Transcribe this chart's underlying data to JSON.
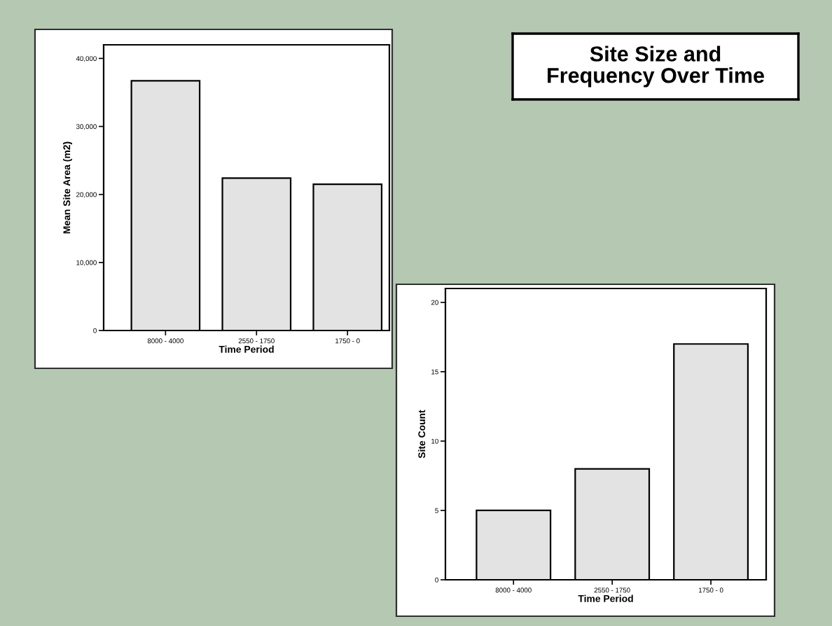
{
  "chart_data": [
    {
      "type": "bar",
      "xlabel": "Time Period",
      "ylabel": "Mean Site Area (m2)",
      "categories": [
        "8000 - 4000",
        "2550 - 1750",
        "1750 - 0"
      ],
      "values": [
        36700,
        22400,
        21500
      ],
      "color": "#e3e3e3",
      "ylim": [
        0,
        42000
      ],
      "yticks": [
        0,
        {
          "value": 10000,
          "label": "10,000"
        },
        {
          "value": 20000,
          "label": "20,000"
        },
        {
          "value": 30000,
          "label": "30,000"
        },
        {
          "value": 40000,
          "label": "40,000"
        }
      ],
      "grid": false
    },
    {
      "type": "other",
      "title": "Site Size and\nFrequency Over Time"
    },
    {
      "type": "bar",
      "xlabel": "Time Period",
      "ylabel": "Site Count",
      "categories": [
        "8000 - 4000",
        "2550 - 1750",
        "1750 - 0"
      ],
      "values": [
        5,
        8,
        17
      ],
      "color": "#e3e3e3",
      "ylim": [
        0,
        21
      ],
      "yticks": [
        0,
        5,
        10,
        15,
        20
      ],
      "grid": false
    }
  ]
}
